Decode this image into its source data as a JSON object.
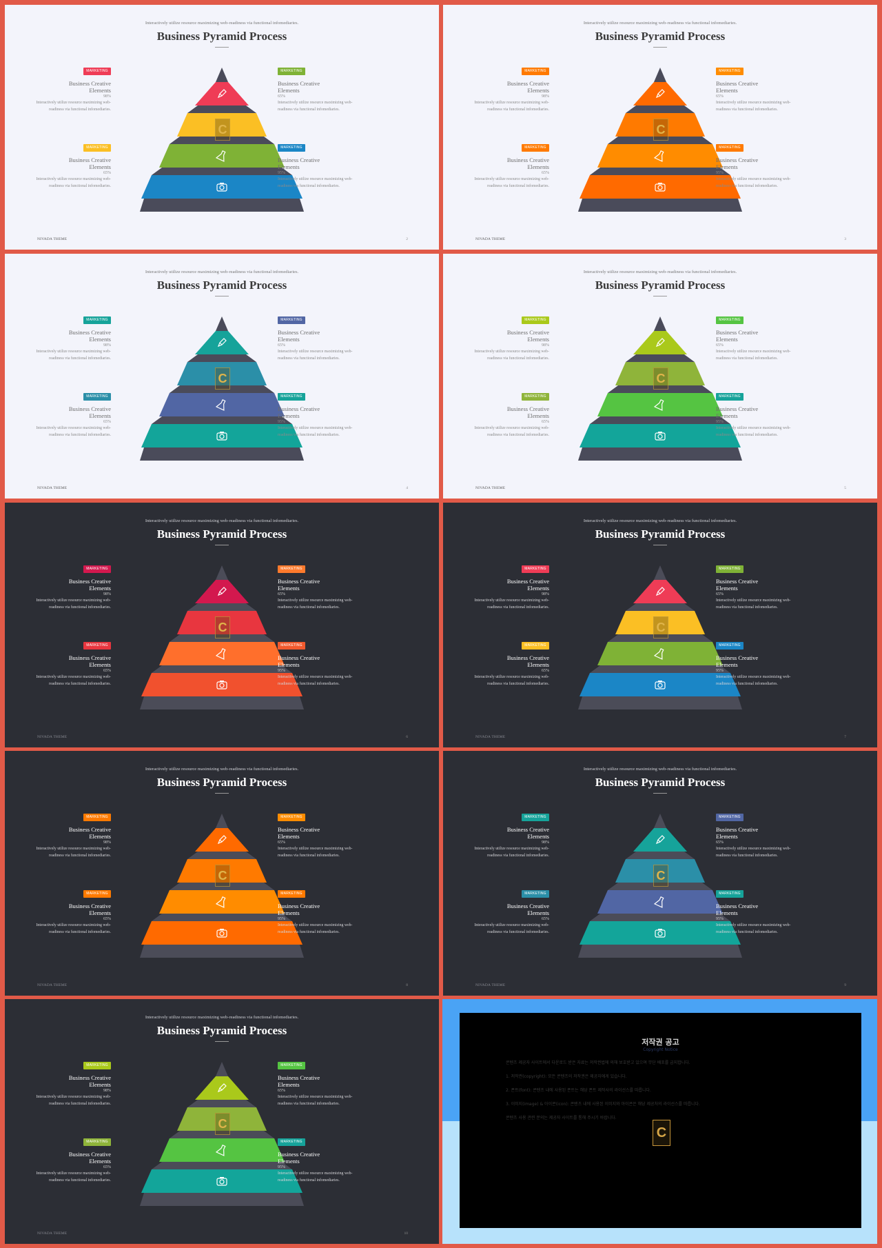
{
  "slide_common": {
    "subtitle": "Interactively utilize resource maximizing web-readiness via functional infomediaries.",
    "title": "Business Pyramid Process",
    "tag_label": "MARKETING",
    "block_heading_line1": "Business Creative",
    "block_heading_line2": "Elements",
    "block_text_line1": "Interactively utilize resource maximizing web-",
    "block_text_line2": "readiness via functional infomediaries.",
    "footer": "NIVADA THEME",
    "pyramid_icons": [
      "pencil-icon",
      "contents-logo-icon",
      "flask-icon",
      "camera-icon"
    ]
  },
  "slides": [
    {
      "theme": "light",
      "page": "2",
      "pyramid_colors": [
        "#ef3c56",
        "#fbbf24",
        "#7fb236",
        "#1b86c6"
      ],
      "tag_colors": [
        "#ef3c56",
        "#7fb236",
        "#fbbf24",
        "#1b86c6"
      ],
      "percents": [
        "98%",
        "65%",
        "65%",
        "95%"
      ]
    },
    {
      "theme": "light",
      "page": "3",
      "pyramid_colors": [
        "#ff6a00",
        "#ff7a00",
        "#ff8c00",
        "#ff6a00"
      ],
      "tag_colors": [
        "#ff7a00",
        "#ff8c00",
        "#ff7a00",
        "#ff7a00"
      ],
      "percents": [
        "98%",
        "65%",
        "65%",
        "95%"
      ]
    },
    {
      "theme": "light",
      "page": "4",
      "pyramid_colors": [
        "#16a39a",
        "#2b8fa8",
        "#5166a4",
        "#13a59a"
      ],
      "tag_colors": [
        "#16a39a",
        "#5166a4",
        "#2b8fa8",
        "#16a39a"
      ],
      "percents": [
        "98%",
        "65%",
        "65%",
        "95%"
      ]
    },
    {
      "theme": "light",
      "page": "5",
      "pyramid_colors": [
        "#aac91b",
        "#8fb43a",
        "#55c442",
        "#13a59a"
      ],
      "tag_colors": [
        "#aac91b",
        "#55c442",
        "#8fb43a",
        "#16a39a"
      ],
      "percents": [
        "98%",
        "65%",
        "65%",
        "95%"
      ]
    },
    {
      "theme": "dark",
      "page": "6",
      "pyramid_colors": [
        "#d3184e",
        "#e8363f",
        "#ff6f2c",
        "#f1512e"
      ],
      "tag_colors": [
        "#d3184e",
        "#ff7a2c",
        "#e8363f",
        "#f15a2e"
      ],
      "percents": [
        "98%",
        "65%",
        "65%",
        "95%"
      ]
    },
    {
      "theme": "dark",
      "page": "7",
      "pyramid_colors": [
        "#ef3c56",
        "#fbbf24",
        "#7fb236",
        "#1b86c6"
      ],
      "tag_colors": [
        "#ef3c56",
        "#7fb236",
        "#fbbf24",
        "#1b86c6"
      ],
      "percents": [
        "98%",
        "65%",
        "65%",
        "95%"
      ]
    },
    {
      "theme": "dark",
      "page": "8",
      "pyramid_colors": [
        "#ff6a00",
        "#ff7a00",
        "#ff8c00",
        "#ff6a00"
      ],
      "tag_colors": [
        "#ff7a00",
        "#ff8c00",
        "#ff7a00",
        "#ff7a00"
      ],
      "percents": [
        "98%",
        "65%",
        "65%",
        "95%"
      ]
    },
    {
      "theme": "dark",
      "page": "9",
      "pyramid_colors": [
        "#16a39a",
        "#2b8fa8",
        "#5166a4",
        "#13a59a"
      ],
      "tag_colors": [
        "#16a39a",
        "#5166a4",
        "#2b8fa8",
        "#16a39a"
      ],
      "percents": [
        "98%",
        "65%",
        "65%",
        "95%"
      ]
    },
    {
      "theme": "dark",
      "page": "10",
      "pyramid_colors": [
        "#aac91b",
        "#8fb43a",
        "#55c442",
        "#13a59a"
      ],
      "tag_colors": [
        "#aac91b",
        "#55c442",
        "#8fb43a",
        "#16a39a"
      ],
      "percents": [
        "98%",
        "65%",
        "65%",
        "95%"
      ]
    }
  ],
  "copyright": {
    "title": "저작권 공고",
    "subtitle": "Copyright Notice",
    "paragraphs": [
      "콘텐츠 제공자 사이트에서 다운로드 받은 자료는 저작권법에 의해 보호받고 있으며 무단 배포를 금지합니다.",
      "1. 저작권(copyright): 모든 콘텐츠의 저작권은 제공자에게 있습니다.",
      "2. 폰트(font): 콘텐츠 내에 사용된 폰트는 해당 폰트 제작사의 라이선스를 따릅니다.",
      "3. 이미지(image) & 아이콘(icon): 콘텐츠 내에 사용된 이미지와 아이콘은 해당 제공처의 라이선스를 따릅니다.",
      "콘텐츠 사용 관련 문의는 제공자 사이트를 통해 주시기 바랍니다."
    ],
    "logo_letter": "C"
  }
}
